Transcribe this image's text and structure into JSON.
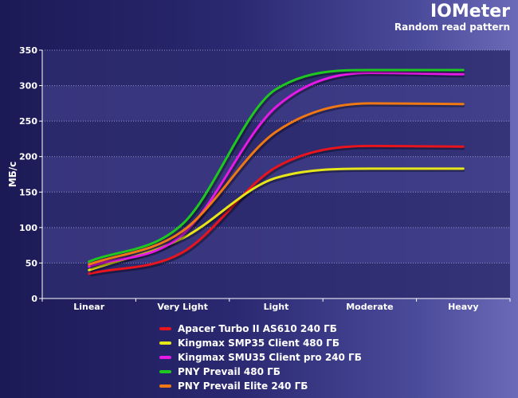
{
  "header": {
    "title": "IOMeter",
    "subtitle": "Random read pattern"
  },
  "chart_data": {
    "type": "line",
    "ylabel": "МБ/с",
    "xlabel": "",
    "categories": [
      "Linear",
      "Very Light",
      "Light",
      "Moderate",
      "Heavy"
    ],
    "ylim": [
      0,
      350
    ],
    "yticks": [
      0,
      50,
      100,
      150,
      200,
      250,
      300,
      350
    ],
    "grid": true,
    "legend_position": "bottom",
    "series": [
      {
        "name": "Apacer Turbo II AS610 240 ГБ",
        "color": "#e8141e",
        "values": [
          35,
          65,
          185,
          215,
          214
        ]
      },
      {
        "name": "Kingmax SMP35 Client 480 ГБ",
        "color": "#e6e619",
        "values": [
          40,
          85,
          170,
          183,
          183
        ]
      },
      {
        "name": "Kingmax SMU35 Client pro 240 ГБ",
        "color": "#e619e6",
        "values": [
          45,
          90,
          270,
          318,
          316
        ]
      },
      {
        "name": "PNY Prevail 480 ГБ",
        "color": "#1ec81e",
        "values": [
          52,
          105,
          295,
          322,
          322
        ]
      },
      {
        "name": "PNY Prevail Elite 240 ГБ",
        "color": "#f07814",
        "values": [
          48,
          95,
          235,
          275,
          274
        ]
      }
    ]
  }
}
